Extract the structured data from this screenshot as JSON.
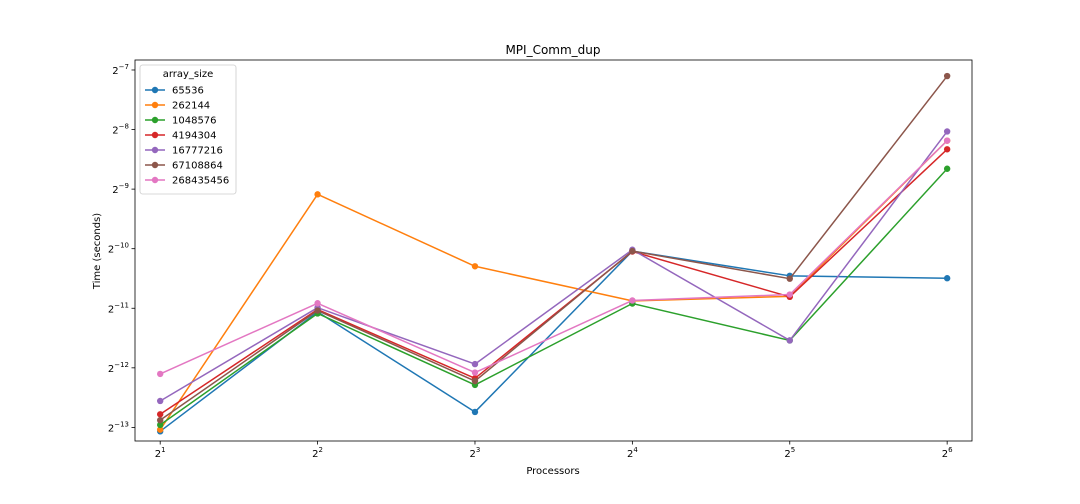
{
  "chart_data": {
    "type": "line",
    "title": "MPI_Comm_dup",
    "xlabel": "Processors",
    "ylabel": "Time (seconds)",
    "x_scale": "log2",
    "y_scale": "log2",
    "x": [
      2,
      4,
      8,
      16,
      32,
      64
    ],
    "x_ticks": [
      {
        "base": "2",
        "exp": "1"
      },
      {
        "base": "2",
        "exp": "2"
      },
      {
        "base": "2",
        "exp": "3"
      },
      {
        "base": "2",
        "exp": "4"
      },
      {
        "base": "2",
        "exp": "5"
      },
      {
        "base": "2",
        "exp": "6"
      }
    ],
    "y_ticks": [
      {
        "base": "2",
        "exp": "−13",
        "value": 0.0001220703125
      },
      {
        "base": "2",
        "exp": "−12",
        "value": 0.000244140625
      },
      {
        "base": "2",
        "exp": "−11",
        "value": 0.00048828125
      },
      {
        "base": "2",
        "exp": "−10",
        "value": 0.0009765625
      },
      {
        "base": "2",
        "exp": "−9",
        "value": 0.001953125
      },
      {
        "base": "2",
        "exp": "−8",
        "value": 0.00390625
      },
      {
        "base": "2",
        "exp": "−7",
        "value": 0.0078125
      }
    ],
    "xlim": [
      1.79,
      71.4
    ],
    "ylim": [
      0.0001042,
      0.008775
    ],
    "grid": false,
    "legend": {
      "title": "array_size",
      "position": "top-left"
    },
    "series": [
      {
        "name": "65536",
        "color": "#1f77b4",
        "values": [
          0.0001166,
          0.0004681,
          0.0001461,
          0.0009496,
          0.0007122,
          0.0006926
        ]
      },
      {
        "name": "262144",
        "color": "#ff7f0e",
        "values": [
          0.0001189,
          0.001838,
          0.0007958,
          0.0005319,
          0.0005607,
          0.003433
        ]
      },
      {
        "name": "1048576",
        "color": "#2ca02c",
        "values": [
          0.0001257,
          0.0004596,
          0.0002001,
          0.000516,
          0.0003358,
          0.002476
        ]
      },
      {
        "name": "4194304",
        "color": "#d62728",
        "values": [
          0.0001422,
          0.0004811,
          0.000216,
          0.0009449,
          0.0005577,
          0.003105
        ]
      },
      {
        "name": "16777216",
        "color": "#9467bd",
        "values": [
          0.000166,
          0.0004916,
          0.000255,
          0.000965,
          0.0003358,
          0.00382
        ]
      },
      {
        "name": "67108864",
        "color": "#8c564b",
        "values": [
          0.0001328,
          0.0004755,
          0.0002093,
          0.0009496,
          0.0006889,
          0.00728
        ]
      },
      {
        "name": "268435456",
        "color": "#e377c2",
        "values": [
          0.0002275,
          0.0005175,
          0.0002311,
          0.0005346,
          0.0005728,
          0.003433
        ]
      }
    ]
  }
}
